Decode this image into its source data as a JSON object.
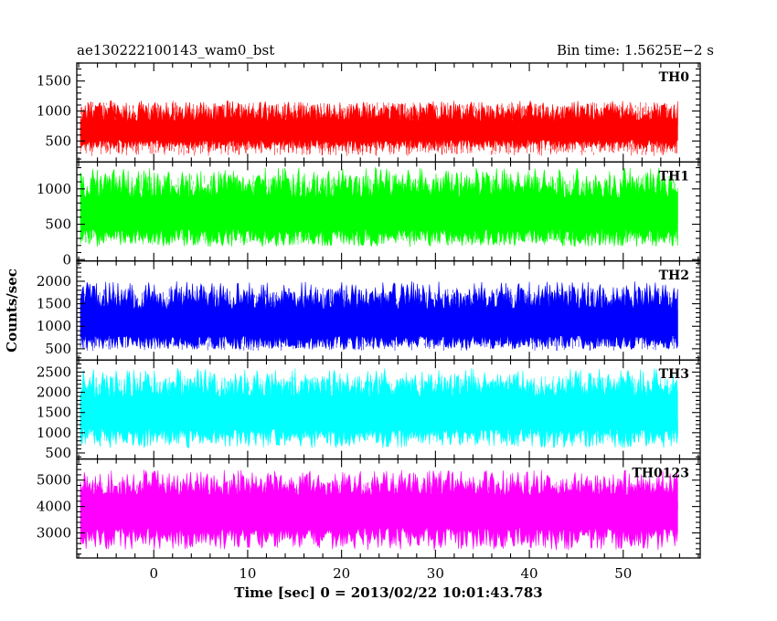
{
  "chart_data": {
    "type": "line",
    "title_left": "ae130222100143_wam0_bst",
    "title_right": "Bin time: 1.5625E−2 s",
    "xlabel": "Time [sec] 0 = 2013/02/22 10:01:43.783",
    "ylabel": "Counts/sec",
    "xlim": [
      -8.2,
      58.2
    ],
    "data_range": [
      -7.8,
      55.8
    ],
    "x_ticks": [
      0,
      10,
      20,
      30,
      40,
      50
    ],
    "grid": false,
    "panels": [
      {
        "name": "TH0",
        "color": "#ff0000",
        "ylim": [
          150,
          1800
        ],
        "y_ticks": [
          500,
          1000,
          1500
        ],
        "baseline": 650,
        "high_spread": 520,
        "low_spread": 280,
        "rate_mean": 700,
        "fine_spread": 900
      },
      {
        "name": "TH1",
        "color": "#00ff00",
        "ylim": [
          -20,
          1380
        ],
        "y_ticks": [
          0,
          500,
          1000
        ],
        "baseline": 650,
        "high_spread": 650,
        "low_spread": 470,
        "rate_mean": 700,
        "fine_spread": 1000
      },
      {
        "name": "TH2",
        "color": "#0000ff",
        "ylim": [
          250,
          2450
        ],
        "y_ticks": [
          500,
          1000,
          1500,
          2000
        ],
        "baseline": 1050,
        "high_spread": 950,
        "low_spread": 570,
        "rate_mean": 1150,
        "fine_spread": 1400
      },
      {
        "name": "TH3",
        "color": "#00ffff",
        "ylim": [
          350,
          2800
        ],
        "y_ticks": [
          500,
          1000,
          1500,
          2000,
          2500
        ],
        "baseline": 1500,
        "high_spread": 1100,
        "low_spread": 880,
        "rate_mean": 1600,
        "fine_spread": 1600
      },
      {
        "name": "TH0123",
        "color": "#ff00ff",
        "ylim": [
          2050,
          5800
        ],
        "y_ticks": [
          3000,
          4000,
          5000
        ],
        "baseline": 3900,
        "high_spread": 1500,
        "low_spread": 1550,
        "rate_mean": 4000,
        "fine_spread": 2000
      }
    ]
  }
}
